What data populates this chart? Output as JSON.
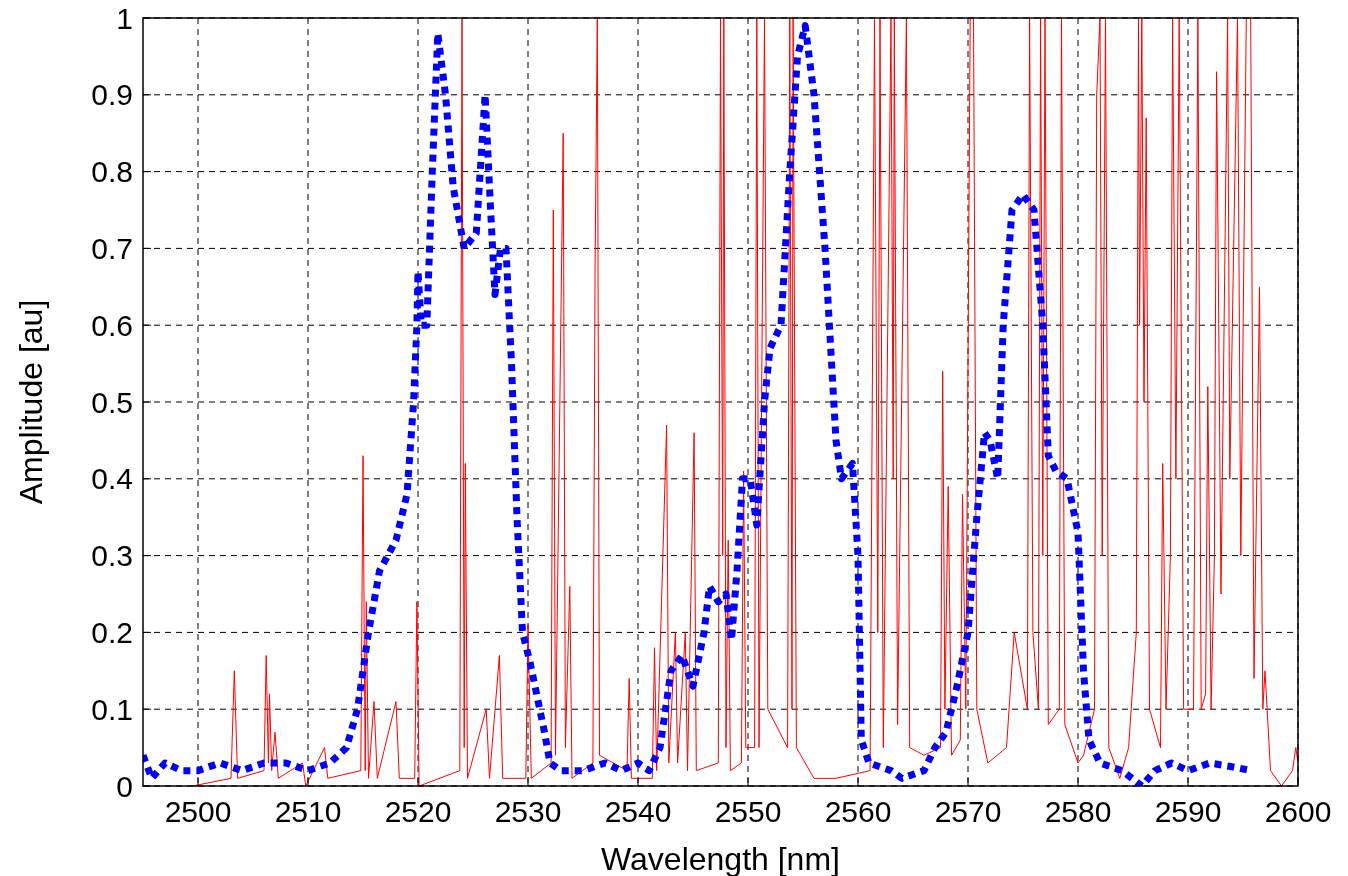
{
  "chart_data": {
    "type": "line",
    "xlabel": "Wavelength [nm]",
    "ylabel": "Amplitude [au]",
    "xlim": [
      2495,
      2600
    ],
    "ylim": [
      0,
      1
    ],
    "xticks": [
      2500,
      2510,
      2520,
      2530,
      2540,
      2550,
      2560,
      2570,
      2580,
      2590,
      2600
    ],
    "yticks": [
      0,
      0.1,
      0.2,
      0.3,
      0.4,
      0.5,
      0.6,
      0.7,
      0.8,
      0.9,
      1
    ],
    "grid": true,
    "series": [
      {
        "color": "#ff0000",
        "line_style": "solid",
        "x": [
          2499.5,
          2503,
          2503.3,
          2503.6,
          2506,
          2506.2,
          2506.4,
          2506.5,
          2506.7,
          2507,
          2507.3,
          2509.5,
          2509.8,
          2511.5,
          2511.8,
          2514.8,
          2515,
          2515.2,
          2515.3,
          2515.5,
          2516,
          2516.3,
          2518,
          2518.3,
          2519.7,
          2519.9,
          2520.1,
          2523.8,
          2524,
          2524.2,
          2524.3,
          2524.5,
          2526.2,
          2526.5,
          2527.4,
          2527.7,
          2529.8,
          2530,
          2530.3,
          2532.1,
          2532.3,
          2532.5,
          2533.2,
          2533.4,
          2533.8,
          2534,
          2535.9,
          2536.1,
          2536.3,
          2536.5,
          2539,
          2539.2,
          2539.4,
          2541.3,
          2541.5,
          2541.7,
          2542.6,
          2542.8,
          2543.4,
          2543.6,
          2544.3,
          2544.5,
          2545.1,
          2545.3,
          2547.3,
          2547.5,
          2547.7,
          2547.8,
          2548,
          2548.2,
          2548.4,
          2549.4,
          2549.6,
          2549.8,
          2550.6,
          2550.8,
          2551,
          2551.5,
          2551.8,
          2553.6,
          2553.8,
          2554,
          2554.1,
          2554.4,
          2556,
          2558,
          2561.1,
          2561.5,
          2561.8,
          2562,
          2562.3,
          2563,
          2563.2,
          2563.3,
          2563.6,
          2564.4,
          2564.7,
          2566,
          2567.5,
          2567.7,
          2567.9,
          2568.2,
          2568.5,
          2569.3,
          2569.5,
          2569.8,
          2570.2,
          2570.5,
          2570.8,
          2571.8,
          2573.5,
          2574.2,
          2575.4,
          2575.6,
          2575.9,
          2576.4,
          2576.6,
          2576.8,
          2577,
          2577.3,
          2578.3,
          2578.5,
          2578.8,
          2580,
          2580.5,
          2581.5,
          2581.7,
          2582,
          2582.2,
          2582.5,
          2582.8,
          2583.8,
          2584.6,
          2585.3,
          2585.5,
          2585.6,
          2585.8,
          2586,
          2586.2,
          2586.5,
          2587.5,
          2587.7,
          2588,
          2588.4,
          2588.6,
          2588.9,
          2589.2,
          2589.6,
          2590.5,
          2590.9,
          2591.2,
          2591.6,
          2591.8,
          2592.1,
          2592.4,
          2592.6,
          2593,
          2593.6,
          2593.8,
          2594.5,
          2594.8,
          2595.3,
          2595.7,
          2596,
          2596.5,
          2596.8,
          2597,
          2597.5,
          2598.5,
          2599.5,
          2599.8,
          2600
        ],
        "values": [
          0,
          0.01,
          0.15,
          0.01,
          0.02,
          0.17,
          0.03,
          0.12,
          0.02,
          0.07,
          0.01,
          0.03,
          0,
          0.05,
          0.01,
          0.02,
          0.43,
          0.02,
          0.24,
          0.01,
          0.11,
          0.01,
          0.11,
          0.01,
          0.01,
          0.24,
          0,
          0.02,
          1,
          0.05,
          0.42,
          0.01,
          0.1,
          0.01,
          0.17,
          0.01,
          0.01,
          0.21,
          0.01,
          0.03,
          0.75,
          0.04,
          0.85,
          0.05,
          0.26,
          0.01,
          0.03,
          0.68,
          1,
          0.04,
          0.02,
          0.14,
          0.01,
          0.01,
          0.18,
          0.02,
          0.47,
          0.03,
          0.2,
          0.03,
          0.2,
          0.02,
          0.46,
          0.02,
          0.03,
          1,
          0.3,
          1,
          0.05,
          0.32,
          0.02,
          0.03,
          0.41,
          0.05,
          0.05,
          1,
          0.05,
          1,
          0.1,
          0.05,
          1,
          0.1,
          1,
          0.05,
          0.01,
          0.01,
          0.02,
          1,
          0.2,
          1,
          0.05,
          1,
          0.4,
          1,
          0.08,
          1,
          0.05,
          0.04,
          0.05,
          0.54,
          0.1,
          0.39,
          0.04,
          0.06,
          0.38,
          0.1,
          1,
          1,
          0.1,
          0.03,
          0.05,
          0.2,
          0.1,
          1,
          0.2,
          0.1,
          1,
          0.3,
          1,
          0.08,
          0.1,
          1,
          0.08,
          0.03,
          0.04,
          0.1,
          0.9,
          1,
          0.3,
          1,
          0.05,
          0.01,
          0.05,
          0.2,
          1,
          0.6,
          1,
          0.5,
          0.87,
          0.1,
          0.05,
          0.42,
          0.1,
          0.3,
          1,
          0.4,
          1,
          0.1,
          0.1,
          1,
          0.1,
          0.12,
          0.52,
          0.1,
          0.3,
          0.93,
          0.25,
          1,
          0.4,
          1,
          0.3,
          1,
          1,
          0.14,
          0.65,
          0.1,
          0.15,
          0.02,
          0,
          0.02,
          0.05,
          0.03
        ]
      },
      {
        "color": "#0000ff",
        "line_style": "dotted",
        "x": [
          2495,
          2495.8,
          2497,
          2498.5,
          2500,
          2502,
          2504,
          2506,
          2508,
          2510,
          2512,
          2513.5,
          2514.5,
          2515.5,
          2516.5,
          2518,
          2519,
          2519.6,
          2519.9,
          2520,
          2520.3,
          2520.8,
          2521.3,
          2521.8,
          2522.5,
          2523.2,
          2524.2,
          2525.3,
          2526.1,
          2526.6,
          2527,
          2527.5,
          2528,
          2528.5,
          2529,
          2529.5,
          2530.2,
          2531.5,
          2532,
          2533,
          2535,
          2537,
          2538.5,
          2540,
          2541,
          2542,
          2543,
          2544,
          2545,
          2546,
          2546.5,
          2547.3,
          2548,
          2548.5,
          2549,
          2549.5,
          2550.2,
          2550.8,
          2551.5,
          2552,
          2553,
          2553.8,
          2554.5,
          2555.2,
          2556,
          2557,
          2558,
          2558.5,
          2559.5,
          2560,
          2560.3,
          2561,
          2563,
          2564,
          2566,
          2567,
          2568,
          2569,
          2570,
          2570.8,
          2571.5,
          2572,
          2572.7,
          2573.2,
          2574,
          2575,
          2576,
          2576.8,
          2577.3,
          2578,
          2579,
          2580,
          2580.5,
          2581,
          2582,
          2584,
          2585.8,
          2587,
          2588.5,
          2590,
          2592,
          2594,
          2595.8
        ],
        "values": [
          0.04,
          0.01,
          0.03,
          0.02,
          0.02,
          0.03,
          0.02,
          0.03,
          0.03,
          0.02,
          0.03,
          0.05,
          0.1,
          0.2,
          0.28,
          0.32,
          0.38,
          0.5,
          0.6,
          0.67,
          0.6,
          0.6,
          0.8,
          0.98,
          0.9,
          0.78,
          0.7,
          0.72,
          0.9,
          0.75,
          0.64,
          0.7,
          0.7,
          0.55,
          0.35,
          0.2,
          0.16,
          0.07,
          0.03,
          0.02,
          0.02,
          0.03,
          0.02,
          0.03,
          0.02,
          0.05,
          0.15,
          0.17,
          0.13,
          0.2,
          0.26,
          0.24,
          0.25,
          0.19,
          0.28,
          0.4,
          0.4,
          0.34,
          0.5,
          0.57,
          0.6,
          0.8,
          0.95,
          0.99,
          0.9,
          0.7,
          0.45,
          0.4,
          0.42,
          0.3,
          0.06,
          0.03,
          0.02,
          0.01,
          0.02,
          0.05,
          0.07,
          0.13,
          0.2,
          0.35,
          0.46,
          0.45,
          0.4,
          0.6,
          0.75,
          0.77,
          0.75,
          0.6,
          0.43,
          0.41,
          0.4,
          0.33,
          0.15,
          0.06,
          0.03,
          0.02,
          0,
          0.02,
          0.03,
          0.02,
          0.03,
          0.025,
          0.02
        ]
      }
    ]
  }
}
